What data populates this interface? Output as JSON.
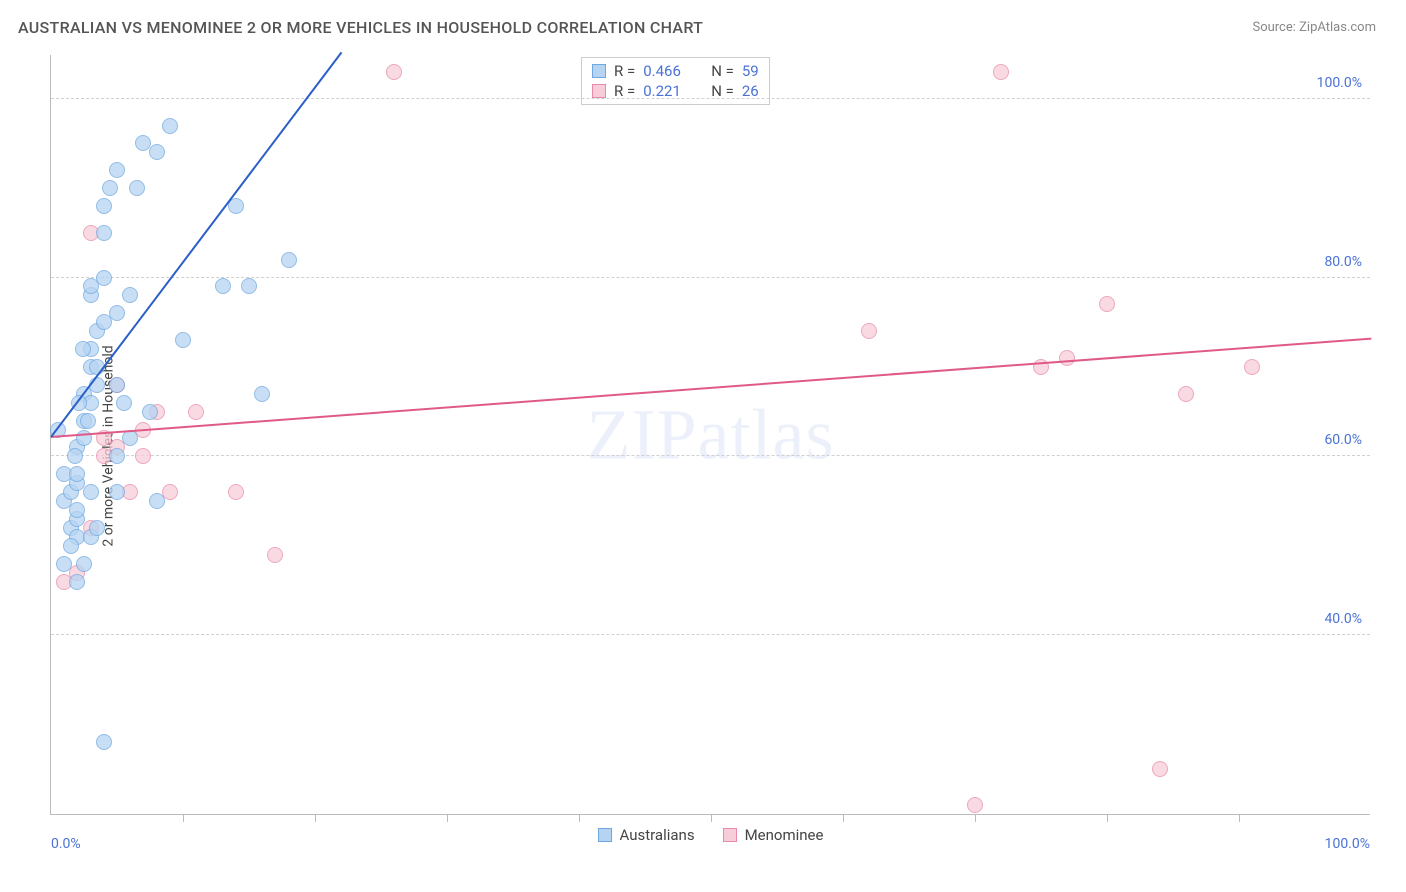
{
  "title": "AUSTRALIAN VS MENOMINEE 2 OR MORE VEHICLES IN HOUSEHOLD CORRELATION CHART",
  "source_label": "Source: ZipAtlas.com",
  "y_axis_label": "2 or more Vehicles in Household",
  "watermark": "ZIPatlas",
  "chart": {
    "type": "scatter",
    "xlim": [
      0,
      100
    ],
    "ylim": [
      20,
      105
    ],
    "x_tick_step": 10,
    "y_ticks": [
      40,
      60,
      80,
      100
    ],
    "y_tick_labels": [
      "40.0%",
      "60.0%",
      "80.0%",
      "100.0%"
    ],
    "x_start_label": "0.0%",
    "x_end_label": "100.0%",
    "grid_color": "#d0d0d0",
    "background_color": "#ffffff",
    "marker_radius": 8,
    "line_width": 2,
    "series": {
      "australians": {
        "label": "Australians",
        "fill_color": "#b6d4f2",
        "stroke_color": "#6ea8e0",
        "line_color": "#2a5fc7",
        "R": "0.466",
        "N": "59",
        "regression": {
          "x1": 0,
          "y1": 62,
          "x2": 22,
          "y2": 105
        },
        "points": [
          [
            0.5,
            63
          ],
          [
            1,
            55
          ],
          [
            1,
            58
          ],
          [
            1.5,
            52
          ],
          [
            1.5,
            56
          ],
          [
            2,
            57
          ],
          [
            2,
            58
          ],
          [
            2,
            53
          ],
          [
            2,
            54
          ],
          [
            2,
            61
          ],
          [
            2.5,
            62
          ],
          [
            2.5,
            64
          ],
          [
            2.5,
            67
          ],
          [
            3,
            66
          ],
          [
            3,
            70
          ],
          [
            3,
            72
          ],
          [
            3,
            78
          ],
          [
            3,
            79
          ],
          [
            3.5,
            68
          ],
          [
            3.5,
            70
          ],
          [
            3.5,
            74
          ],
          [
            4,
            75
          ],
          [
            4,
            80
          ],
          [
            4,
            85
          ],
          [
            4,
            88
          ],
          [
            4.5,
            90
          ],
          [
            5,
            92
          ],
          [
            5,
            76
          ],
          [
            5,
            68
          ],
          [
            5.5,
            66
          ],
          [
            5,
            60
          ],
          [
            5,
            56
          ],
          [
            6,
            62
          ],
          [
            6,
            78
          ],
          [
            6.5,
            90
          ],
          [
            7,
            95
          ],
          [
            7.5,
            65
          ],
          [
            8,
            94
          ],
          [
            8,
            55
          ],
          [
            9,
            97
          ],
          [
            10,
            73
          ],
          [
            13,
            79
          ],
          [
            14,
            88
          ],
          [
            15,
            79
          ],
          [
            16,
            67
          ],
          [
            18,
            82
          ],
          [
            4,
            28
          ],
          [
            2,
            51
          ],
          [
            3,
            51
          ],
          [
            3.5,
            52
          ],
          [
            2,
            46
          ],
          [
            2.5,
            48
          ],
          [
            1,
            48
          ],
          [
            1.5,
            50
          ],
          [
            3,
            56
          ],
          [
            1.8,
            60
          ],
          [
            2.4,
            72
          ],
          [
            2.1,
            66
          ],
          [
            2.8,
            64
          ]
        ]
      },
      "menominee": {
        "label": "Menominee",
        "fill_color": "#f7cdd9",
        "stroke_color": "#e88ba8",
        "line_color": "#e05a87",
        "R": "0.221",
        "N": "26",
        "regression": {
          "x1": 0,
          "y1": 62,
          "x2": 100,
          "y2": 73
        },
        "points": [
          [
            1,
            46
          ],
          [
            2,
            47
          ],
          [
            3,
            52
          ],
          [
            3,
            85
          ],
          [
            4,
            60
          ],
          [
            4,
            62
          ],
          [
            5,
            61
          ],
          [
            5,
            68
          ],
          [
            6,
            56
          ],
          [
            7,
            60
          ],
          [
            7,
            63
          ],
          [
            8,
            65
          ],
          [
            9,
            56
          ],
          [
            11,
            65
          ],
          [
            14,
            56
          ],
          [
            17,
            49
          ],
          [
            26,
            103
          ],
          [
            62,
            74
          ],
          [
            70,
            21
          ],
          [
            72,
            103
          ],
          [
            75,
            70
          ],
          [
            77,
            71
          ],
          [
            80,
            77
          ],
          [
            84,
            25
          ],
          [
            86,
            67
          ],
          [
            91,
            70
          ]
        ]
      }
    }
  }
}
